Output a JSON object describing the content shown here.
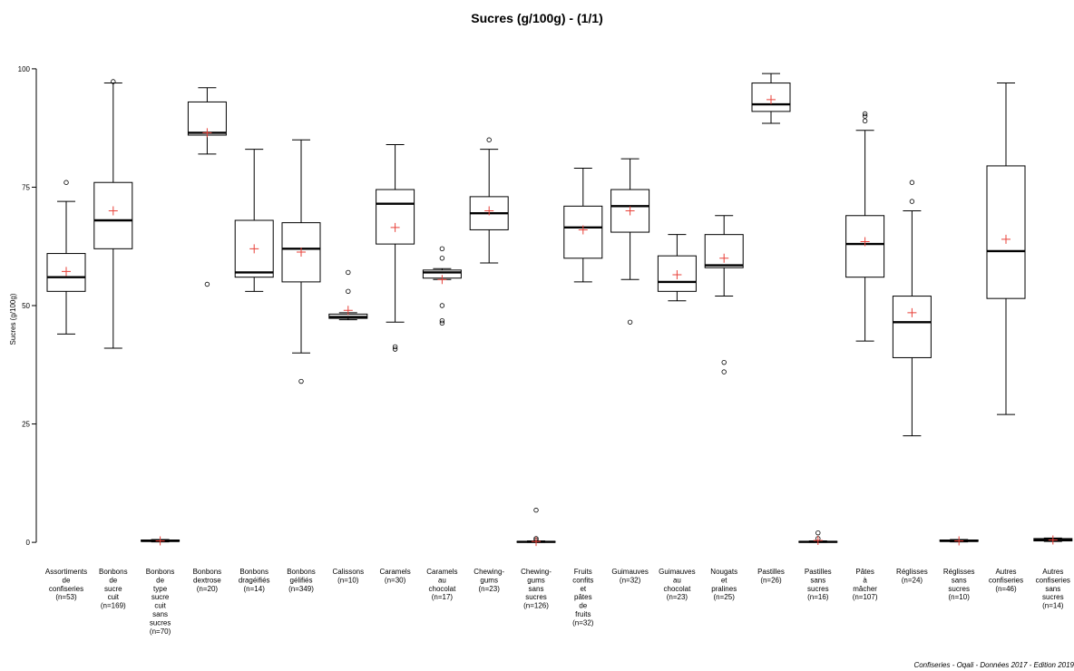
{
  "chart_data": {
    "type": "boxplot",
    "title": "Sucres (g/100g) - (1/1)",
    "ylabel": "Sucres (g/100g)",
    "xlabel": "",
    "ylim": [
      -4,
      104
    ],
    "yticks": [
      0,
      25,
      50,
      75,
      100
    ],
    "grid": false,
    "mean_marker_color": "#e8423a",
    "categories": [
      {
        "label": "Assortiments de confiseries (n=53)",
        "label_lines": [
          "Assortiments",
          "de",
          "confiseries",
          "(n=53)"
        ],
        "whisker_low": 44,
        "q1": 53,
        "median": 56,
        "q3": 61,
        "whisker_high": 72,
        "mean": 57.2,
        "outliers": [
          76
        ]
      },
      {
        "label": "Bonbons de sucre cuit (n=169)",
        "label_lines": [
          "Bonbons",
          "de",
          "sucre",
          "cuit",
          "(n=169)"
        ],
        "whisker_low": 41,
        "q1": 62,
        "median": 68,
        "q3": 76,
        "whisker_high": 97,
        "mean": 70,
        "outliers": [
          97.3
        ]
      },
      {
        "label": "Bonbons de type sucre cuit sans sucres (n=70)",
        "label_lines": [
          "Bonbons",
          "de",
          "type",
          "sucre",
          "cuit",
          "sans",
          "sucres",
          "(n=70)"
        ],
        "whisker_low": 0.1,
        "q1": 0.2,
        "median": 0.3,
        "q3": 0.5,
        "whisker_high": 0.6,
        "mean": 0.3,
        "outliers": []
      },
      {
        "label": "Bonbons dextrose (n=20)",
        "label_lines": [
          "Bonbons",
          "dextrose",
          "(n=20)"
        ],
        "whisker_low": 82,
        "q1": 86,
        "median": 86.5,
        "q3": 93,
        "whisker_high": 96,
        "mean": 86.5,
        "outliers": [
          54.5
        ]
      },
      {
        "label": "Bonbons dragéifiés (n=14)",
        "label_lines": [
          "Bonbons",
          "dragéifiés",
          "(n=14)"
        ],
        "whisker_low": 53,
        "q1": 56,
        "median": 57,
        "q3": 68,
        "whisker_high": 83,
        "mean": 62,
        "outliers": []
      },
      {
        "label": "Bonbons gélifiés (n=349)",
        "label_lines": [
          "Bonbons",
          "gélifiés",
          "(n=349)"
        ],
        "whisker_low": 40,
        "q1": 55,
        "median": 62,
        "q3": 67.5,
        "whisker_high": 85,
        "mean": 61.3,
        "outliers": [
          34
        ]
      },
      {
        "label": "Calissons (n=10)",
        "label_lines": [
          "Calissons",
          "(n=10)"
        ],
        "whisker_low": 47,
        "q1": 47.3,
        "median": 47.6,
        "q3": 48.2,
        "whisker_high": 48.5,
        "mean": 49,
        "outliers": [
          53,
          57
        ]
      },
      {
        "label": "Caramels (n=30)",
        "label_lines": [
          "Caramels",
          "(n=30)"
        ],
        "whisker_low": 46.5,
        "q1": 63,
        "median": 71.5,
        "q3": 74.5,
        "whisker_high": 84,
        "mean": 66.5,
        "outliers": [
          40.8,
          41.3
        ]
      },
      {
        "label": "Caramels au chocolat (n=17)",
        "label_lines": [
          "Caramels",
          "au",
          "chocolat",
          "(n=17)"
        ],
        "whisker_low": 55.5,
        "q1": 55.8,
        "median": 57,
        "q3": 57.5,
        "whisker_high": 57.8,
        "mean": 55.5,
        "outliers": [
          46.3,
          46.8,
          50,
          60,
          62
        ]
      },
      {
        "label": "Chewing-gums (n=23)",
        "label_lines": [
          "Chewing-",
          "gums",
          "(n=23)"
        ],
        "whisker_low": 59,
        "q1": 66,
        "median": 69.5,
        "q3": 73,
        "whisker_high": 83,
        "mean": 70,
        "outliers": [
          85
        ]
      },
      {
        "label": "Chewing-gums sans sucres (n=126)",
        "label_lines": [
          "Chewing-",
          "gums",
          "sans",
          "sucres",
          "(n=126)"
        ],
        "whisker_low": 0,
        "q1": 0,
        "median": 0.1,
        "q3": 0.2,
        "whisker_high": 0.3,
        "mean": 0.2,
        "outliers": [
          0.5,
          0.8,
          6.8
        ]
      },
      {
        "label": "Fruits confits et pâtes de fruits (n=32)",
        "label_lines": [
          "Fruits",
          "confits",
          "et",
          "pâtes",
          "de",
          "fruits",
          "(n=32)"
        ],
        "whisker_low": 55,
        "q1": 60,
        "median": 66.5,
        "q3": 71,
        "whisker_high": 79,
        "mean": 66,
        "outliers": []
      },
      {
        "label": "Guimauves (n=32)",
        "label_lines": [
          "Guimauves",
          "(n=32)"
        ],
        "whisker_low": 55.5,
        "q1": 65.5,
        "median": 71,
        "q3": 74.5,
        "whisker_high": 81,
        "mean": 70,
        "outliers": [
          46.5
        ]
      },
      {
        "label": "Guimauves au chocolat (n=23)",
        "label_lines": [
          "Guimauves",
          "au",
          "chocolat",
          "(n=23)"
        ],
        "whisker_low": 51,
        "q1": 53,
        "median": 55,
        "q3": 60.5,
        "whisker_high": 65,
        "mean": 56.5,
        "outliers": []
      },
      {
        "label": "Nougats et pralines (n=25)",
        "label_lines": [
          "Nougats",
          "et",
          "pralines",
          "(n=25)"
        ],
        "whisker_low": 52,
        "q1": 58,
        "median": 58.5,
        "q3": 65,
        "whisker_high": 69,
        "mean": 60,
        "outliers": [
          36,
          38
        ]
      },
      {
        "label": "Pastilles (n=26)",
        "label_lines": [
          "Pastilles",
          "(n=26)"
        ],
        "whisker_low": 88.5,
        "q1": 91,
        "median": 92.5,
        "q3": 97,
        "whisker_high": 99,
        "mean": 93.5,
        "outliers": []
      },
      {
        "label": "Pastilles sans sucres (n=16)",
        "label_lines": [
          "Pastilles",
          "sans",
          "sucres",
          "(n=16)"
        ],
        "whisker_low": 0,
        "q1": 0,
        "median": 0.1,
        "q3": 0.2,
        "whisker_high": 0.3,
        "mean": 0.4,
        "outliers": [
          0.8,
          2
        ]
      },
      {
        "label": "Pâtes à mâcher (n=107)",
        "label_lines": [
          "Pâtes",
          "à",
          "mâcher",
          "(n=107)"
        ],
        "whisker_low": 42.5,
        "q1": 56,
        "median": 63,
        "q3": 69,
        "whisker_high": 87,
        "mean": 63.5,
        "outliers": [
          89,
          90,
          90.5
        ]
      },
      {
        "label": "Réglisses (n=24)",
        "label_lines": [
          "Réglisses",
          "(n=24)"
        ],
        "whisker_low": 22.5,
        "q1": 39,
        "median": 46.5,
        "q3": 52,
        "whisker_high": 70,
        "mean": 48.5,
        "outliers": [
          72,
          76
        ]
      },
      {
        "label": "Réglisses sans sucres (n=10)",
        "label_lines": [
          "Réglisses",
          "sans",
          "sucres",
          "(n=10)"
        ],
        "whisker_low": 0.1,
        "q1": 0.2,
        "median": 0.3,
        "q3": 0.5,
        "whisker_high": 0.6,
        "mean": 0.3,
        "outliers": []
      },
      {
        "label": "Autres confiseries (n=46)",
        "label_lines": [
          "Autres",
          "confiseries",
          "(n=46)"
        ],
        "whisker_low": 27,
        "q1": 51.5,
        "median": 61.5,
        "q3": 79.5,
        "whisker_high": 97,
        "mean": 64,
        "outliers": []
      },
      {
        "label": "Autres confiseries sans sucres (n=14)",
        "label_lines": [
          "Autres",
          "confiseries",
          "sans",
          "sucres",
          "(n=14)"
        ],
        "whisker_low": 0.2,
        "q1": 0.3,
        "median": 0.5,
        "q3": 0.8,
        "whisker_high": 0.9,
        "mean": 0.5,
        "outliers": []
      }
    ]
  },
  "caption": "Confiseries - Oqali - Données 2017 - Edition 2019"
}
